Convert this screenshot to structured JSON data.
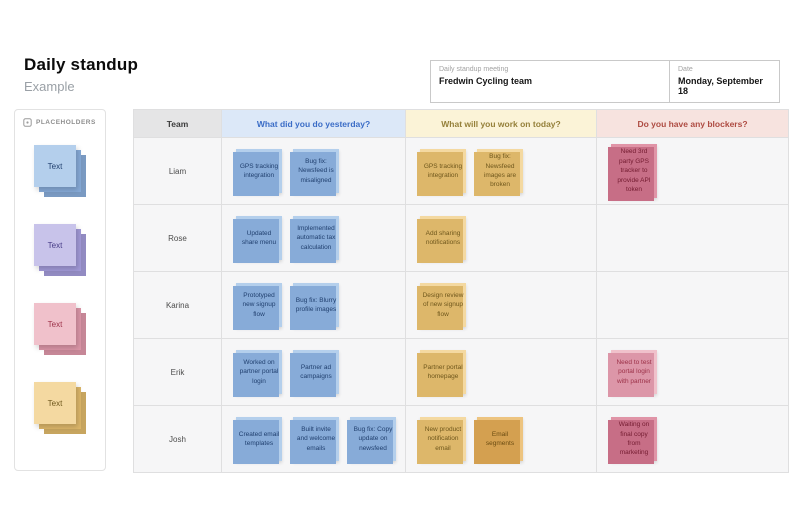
{
  "header": {
    "title": "Daily standup",
    "subtitle": "Example",
    "meeting": {
      "label": "Daily standup meeting",
      "value": "Fredwin Cycling team"
    },
    "date": {
      "label": "Date",
      "value": "Monday, September 18"
    }
  },
  "sidebar": {
    "title": "PLACEHOLDERS",
    "stacks": [
      {
        "label": "Text",
        "color": "blue"
      },
      {
        "label": "Text",
        "color": "purple"
      },
      {
        "label": "Text",
        "color": "pink"
      },
      {
        "label": "Text",
        "color": "yellow"
      }
    ]
  },
  "table": {
    "columns": [
      {
        "key": "team",
        "label": "Team",
        "theme": "gray"
      },
      {
        "key": "yesterday",
        "label": "What did you do yesterday?",
        "theme": "blue"
      },
      {
        "key": "today",
        "label": "What will you work on today?",
        "theme": "yellow"
      },
      {
        "key": "blockers",
        "label": "Do you have any blockers?",
        "theme": "red"
      }
    ],
    "rows": [
      {
        "name": "Liam",
        "yesterday": [
          {
            "text": "GPS tracking integration",
            "color": "blue"
          },
          {
            "text": "Bug fix: Newsfeed is misaligned",
            "color": "blue"
          }
        ],
        "today": [
          {
            "text": "GPS tracking integration",
            "color": "yellow"
          },
          {
            "text": "Bug fix: Newsfeed images are broken",
            "color": "yellow"
          }
        ],
        "blockers": [
          {
            "text": "Need 3rd party GPS tracker to provide API token",
            "color": "rose"
          }
        ]
      },
      {
        "name": "Rose",
        "yesterday": [
          {
            "text": "Updated share menu",
            "color": "blue"
          },
          {
            "text": "Implemented automatic tax calculation",
            "color": "blue"
          }
        ],
        "today": [
          {
            "text": "Add sharing notifications",
            "color": "yellow"
          }
        ],
        "blockers": []
      },
      {
        "name": "Karina",
        "yesterday": [
          {
            "text": "Prototyped new signup flow",
            "color": "blue"
          },
          {
            "text": "Bug fix: Blurry profile images",
            "color": "blue"
          }
        ],
        "today": [
          {
            "text": "Design review of new signup flow",
            "color": "yellow"
          }
        ],
        "blockers": []
      },
      {
        "name": "Erik",
        "yesterday": [
          {
            "text": "Worked on partner portal login",
            "color": "blue"
          },
          {
            "text": "Partner ad campaigns",
            "color": "blue"
          }
        ],
        "today": [
          {
            "text": "Partner portal homepage",
            "color": "yellow"
          }
        ],
        "blockers": [
          {
            "text": "Need to test portal login with partner",
            "color": "pink"
          }
        ]
      },
      {
        "name": "Josh",
        "yesterday": [
          {
            "text": "Created email templates",
            "color": "blue"
          },
          {
            "text": "Built invite and welcome emails",
            "color": "blue"
          },
          {
            "text": "Bug fix: Copy update on newsfeed",
            "color": "blue"
          }
        ],
        "today": [
          {
            "text": "New product notification email",
            "color": "yellow"
          },
          {
            "text": "Email segments",
            "color": "orange"
          }
        ],
        "blockers": [
          {
            "text": "Waiting on final copy from marketing",
            "color": "rose"
          }
        ]
      }
    ]
  },
  "colors": {
    "note_blue": "#b4cfec",
    "note_purple": "#c8c3ea",
    "note_pink": "#f0c1cb",
    "note_rose": "#e094a7",
    "note_yellow": "#f4d9a1",
    "note_orange": "#edc480",
    "header_blue_bg": "#dce8f8",
    "header_blue_text": "#3a6cc6",
    "header_yellow_bg": "#fbf3d7",
    "header_yellow_text": "#95803a",
    "header_red_bg": "#f7e3df",
    "header_red_text": "#ae4b42",
    "header_gray_bg": "#e5e5e6"
  }
}
